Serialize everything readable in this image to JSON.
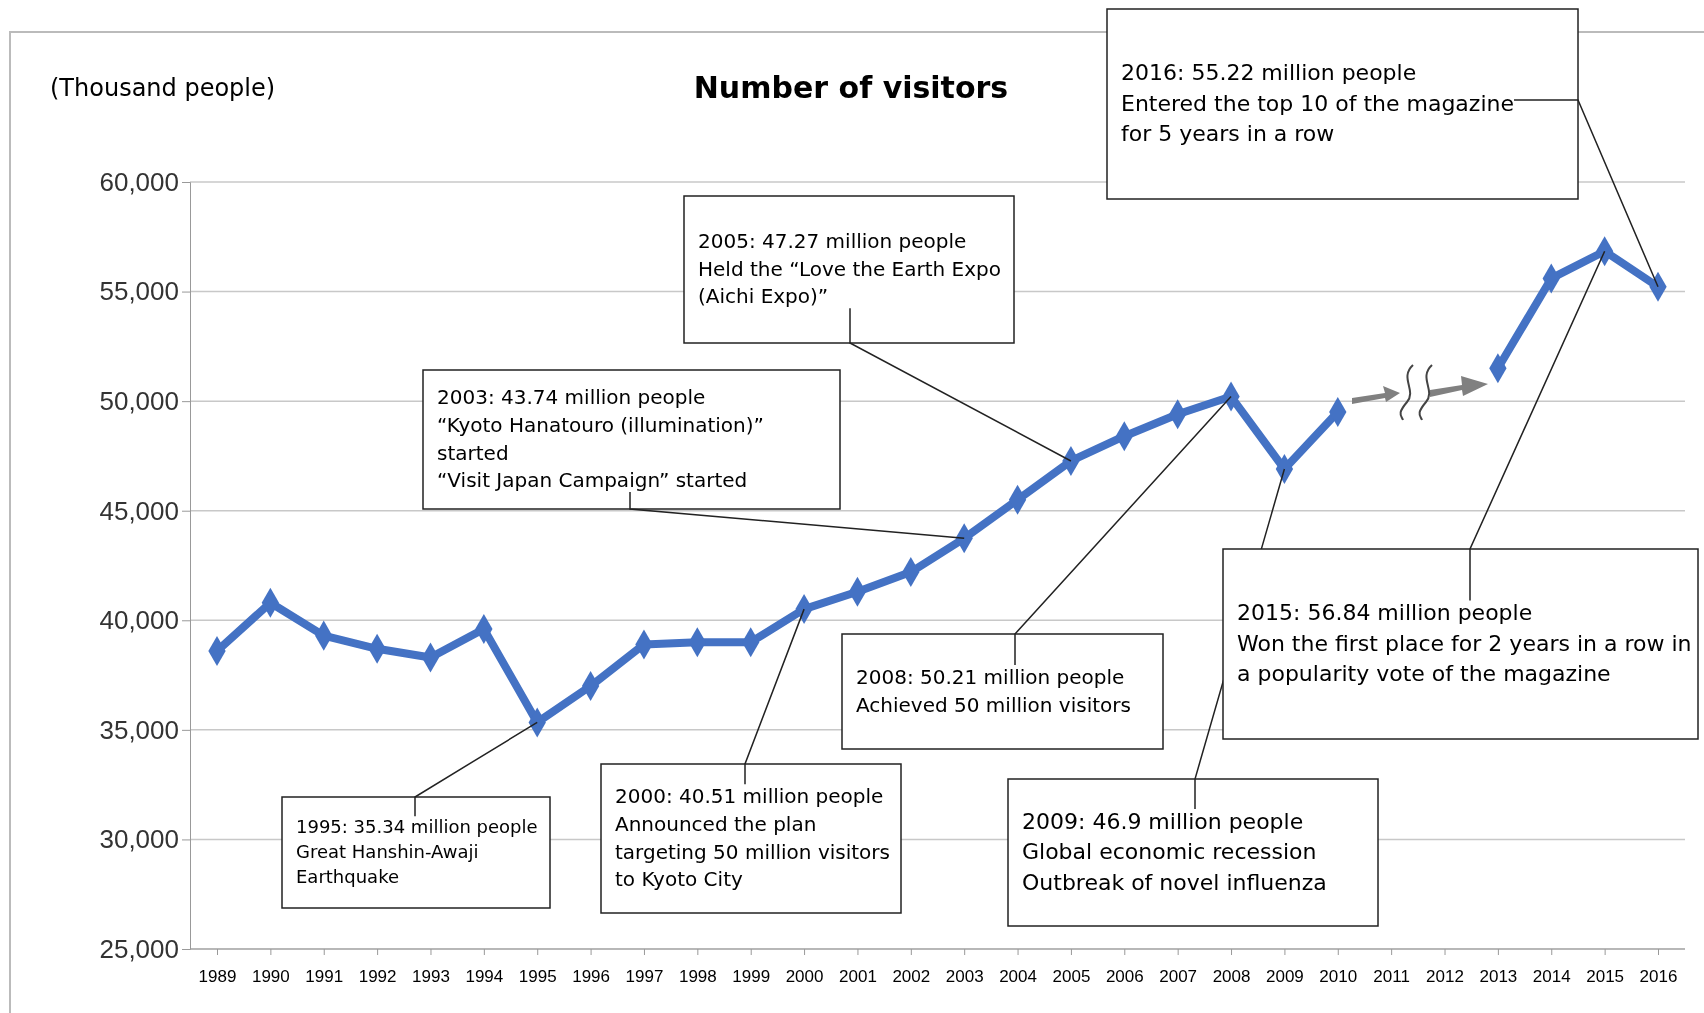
{
  "chart_data": {
    "type": "line",
    "title": "Number of visitors",
    "ylabel": "(Thousand people)",
    "categories": [
      "1989",
      "1990",
      "1991",
      "1992",
      "1993",
      "1994",
      "1995",
      "1996",
      "1997",
      "1998",
      "1999",
      "2000",
      "2001",
      "2002",
      "2003",
      "2004",
      "2005",
      "2006",
      "2007",
      "2008",
      "2009",
      "2010",
      "2011",
      "2012",
      "2013",
      "2014",
      "2015",
      "2016"
    ],
    "series": [
      {
        "color": "#4472c4",
        "values": [
          38600,
          40800,
          39300,
          38700,
          38300,
          39600,
          35340,
          37000,
          38900,
          39000,
          39000,
          40510,
          41300,
          42200,
          43740,
          45500,
          47270,
          48400,
          49400,
          50210,
          46900,
          49500,
          null,
          null,
          51500,
          55600,
          56840,
          55220
        ]
      }
    ],
    "ylim": [
      25000,
      60000
    ],
    "yticks": [
      {
        "value": 25000,
        "label": "25,000"
      },
      {
        "value": 30000,
        "label": "30,000"
      },
      {
        "value": 35000,
        "label": "35,000"
      },
      {
        "value": 40000,
        "label": "40,000"
      },
      {
        "value": 45000,
        "label": "45,000"
      },
      {
        "value": 50000,
        "label": "50,000"
      },
      {
        "value": 55000,
        "label": "55,000"
      },
      {
        "value": 60000,
        "label": "60,000"
      }
    ],
    "grid": "y",
    "marker": "diamond",
    "line_style": "solid",
    "annotations": [
      {
        "text": "1995: 35.34 million people\nGreat Hanshin-Awaji\nEarthquake",
        "x": "1995",
        "y": 35340
      },
      {
        "text": "2000: 40.51 million people\nAnnounced the plan\ntargeting 50 million visitors\nto Kyoto City",
        "x": "2000",
        "y": 40510
      },
      {
        "text": "2003: 43.74 million people\n“Kyoto Hanatouro (illumination)”\nstarted\n“Visit Japan Campaign” started",
        "x": "2003",
        "y": 43740
      },
      {
        "text": "2005: 47.27 million people\nHeld the “Love the Earth Expo\n(Aichi Expo)”",
        "x": "2005",
        "y": 47270
      },
      {
        "text": "2008: 50.21 million people\nAchieved 50 million visitors",
        "x": "2008",
        "y": 50210
      },
      {
        "text": "2009: 46.9 million people\nGlobal economic recession\nOutbreak of novel influenza",
        "x": "2009",
        "y": 46900
      },
      {
        "text": "2015: 56.84 million people\nWon the first place for 2 years in a row in\na popularity vote of the magazine",
        "x": "2015",
        "y": 56840
      },
      {
        "text": "2016: 55.22 million people\nEntered the top 10 of the magazine\nfor 5 years in a row",
        "x": "2016",
        "y": 55220
      }
    ]
  }
}
